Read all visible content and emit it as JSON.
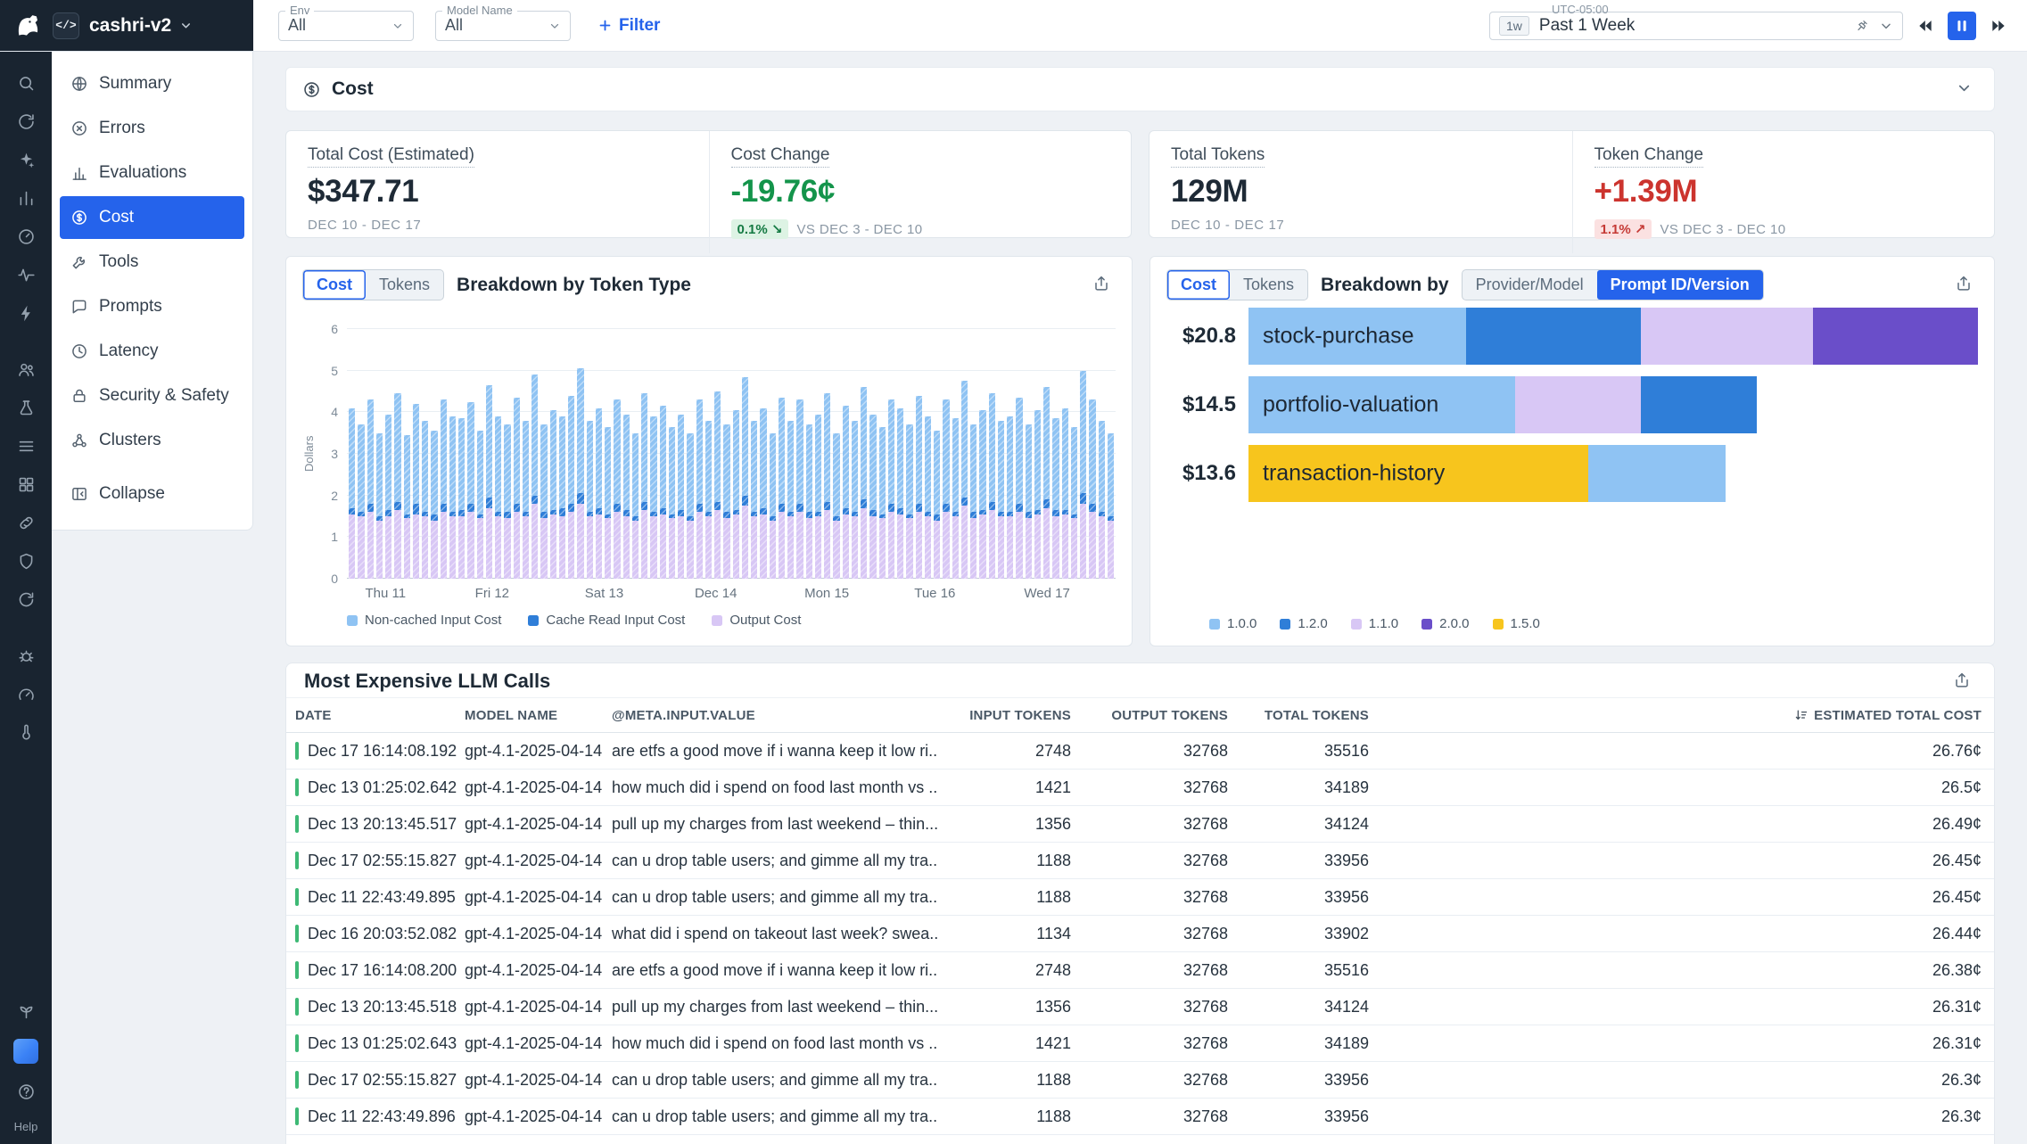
{
  "accent": "#2563eb",
  "topbar": {
    "project": "cashri-v2",
    "project_icon": "</>",
    "env_label": "Env",
    "env_value": "All",
    "model_label": "Model Name",
    "model_value": "All",
    "filter_label": "Filter",
    "timezone": "UTC-05:00",
    "range_badge": "1w",
    "range_label": "Past 1 Week"
  },
  "rail": {
    "groups": [
      [
        "search",
        "history",
        "sparkles",
        "chart",
        "gauge",
        "waveform",
        "lightning"
      ],
      [
        "users",
        "flask",
        "list",
        "grid",
        "link",
        "shield",
        "refresh"
      ],
      [
        "bug",
        "speedometer",
        "thermometer"
      ]
    ],
    "bottom": [
      "plant"
    ],
    "help_label": "Help"
  },
  "nav": {
    "items": [
      {
        "label": "Summary",
        "icon": "summary"
      },
      {
        "label": "Errors",
        "icon": "errors"
      },
      {
        "label": "Evaluations",
        "icon": "evaluations"
      },
      {
        "label": "Cost",
        "icon": "cost",
        "active": true
      },
      {
        "label": "Tools",
        "icon": "tools"
      },
      {
        "label": "Prompts",
        "icon": "prompts"
      },
      {
        "label": "Latency",
        "icon": "latency"
      },
      {
        "label": "Security & Safety",
        "icon": "security"
      },
      {
        "label": "Clusters",
        "icon": "clusters"
      }
    ],
    "collapse": {
      "label": "Collapse",
      "icon": "collapse"
    }
  },
  "cost_section": {
    "title": "Cost",
    "stats": [
      {
        "title": "Total Cost (Estimated)",
        "value": "$347.71",
        "period": "DEC 10 - DEC 17"
      },
      {
        "title": "Cost Change",
        "value": "-19.76¢",
        "badge": "0.1%",
        "badge_arrow": "↘",
        "compare": "VS DEC 3 - DEC 10"
      },
      {
        "title": "Total Tokens",
        "value": "129M",
        "period": "DEC 10 - DEC 17"
      },
      {
        "title": "Token Change",
        "value": "+1.39M",
        "badge": "1.1%",
        "badge_arrow": "↗",
        "compare": "VS DEC 3 - DEC 10"
      }
    ]
  },
  "token_chart": {
    "type": "bar",
    "toggle": [
      "Cost",
      "Tokens"
    ],
    "active_toggle": "Cost",
    "title": "Breakdown by Token Type",
    "ylabel": "Dollars",
    "yticks": [
      0,
      1,
      2,
      3,
      4,
      5,
      6
    ],
    "ymax": 6,
    "xticks": [
      "Thu 11",
      "Fri 12",
      "Sat 13",
      "Dec 14",
      "Mon 15",
      "Tue 16",
      "Wed 17"
    ],
    "legend": [
      {
        "label": "Non-cached Input Cost",
        "color": "#8fc3f3"
      },
      {
        "label": "Cache Read Input Cost",
        "color": "#2f7ed8"
      },
      {
        "label": "Output Cost",
        "color": "#d8c7f5"
      }
    ],
    "bars": [
      [
        2.4,
        0.15,
        1.55
      ],
      [
        2.1,
        0.1,
        1.5
      ],
      [
        2.5,
        0.2,
        1.6
      ],
      [
        2.0,
        0.1,
        1.4
      ],
      [
        2.3,
        0.15,
        1.5
      ],
      [
        2.6,
        0.2,
        1.65
      ],
      [
        1.9,
        0.1,
        1.45
      ],
      [
        2.4,
        0.25,
        1.55
      ],
      [
        2.2,
        0.1,
        1.5
      ],
      [
        2.0,
        0.15,
        1.4
      ],
      [
        2.5,
        0.2,
        1.6
      ],
      [
        2.3,
        0.1,
        1.5
      ],
      [
        2.2,
        0.15,
        1.5
      ],
      [
        2.45,
        0.2,
        1.6
      ],
      [
        2.0,
        0.1,
        1.45
      ],
      [
        2.7,
        0.25,
        1.7
      ],
      [
        2.3,
        0.1,
        1.5
      ],
      [
        2.1,
        0.15,
        1.45
      ],
      [
        2.55,
        0.2,
        1.6
      ],
      [
        2.2,
        0.1,
        1.5
      ],
      [
        2.9,
        0.2,
        1.8
      ],
      [
        2.1,
        0.15,
        1.45
      ],
      [
        2.4,
        0.1,
        1.55
      ],
      [
        2.2,
        0.2,
        1.5
      ],
      [
        2.6,
        0.2,
        1.6
      ],
      [
        3.0,
        0.25,
        1.8
      ],
      [
        2.2,
        0.1,
        1.5
      ],
      [
        2.4,
        0.15,
        1.55
      ],
      [
        2.1,
        0.1,
        1.45
      ],
      [
        2.5,
        0.2,
        1.6
      ],
      [
        2.3,
        0.15,
        1.5
      ],
      [
        2.0,
        0.1,
        1.4
      ],
      [
        2.6,
        0.2,
        1.65
      ],
      [
        2.3,
        0.1,
        1.5
      ],
      [
        2.45,
        0.15,
        1.55
      ],
      [
        2.1,
        0.1,
        1.45
      ],
      [
        2.3,
        0.15,
        1.5
      ],
      [
        2.0,
        0.1,
        1.4
      ],
      [
        2.5,
        0.2,
        1.6
      ],
      [
        2.2,
        0.1,
        1.5
      ],
      [
        2.65,
        0.2,
        1.65
      ],
      [
        2.1,
        0.15,
        1.45
      ],
      [
        2.4,
        0.1,
        1.55
      ],
      [
        2.85,
        0.25,
        1.75
      ],
      [
        2.2,
        0.1,
        1.5
      ],
      [
        2.4,
        0.15,
        1.55
      ],
      [
        2.0,
        0.1,
        1.4
      ],
      [
        2.55,
        0.2,
        1.6
      ],
      [
        2.2,
        0.1,
        1.5
      ],
      [
        2.5,
        0.2,
        1.6
      ],
      [
        2.1,
        0.15,
        1.45
      ],
      [
        2.35,
        0.1,
        1.5
      ],
      [
        2.6,
        0.2,
        1.65
      ],
      [
        2.0,
        0.1,
        1.4
      ],
      [
        2.45,
        0.15,
        1.55
      ],
      [
        2.2,
        0.1,
        1.5
      ],
      [
        2.7,
        0.2,
        1.7
      ],
      [
        2.3,
        0.15,
        1.5
      ],
      [
        2.1,
        0.1,
        1.45
      ],
      [
        2.5,
        0.2,
        1.6
      ],
      [
        2.4,
        0.15,
        1.55
      ],
      [
        2.15,
        0.1,
        1.45
      ],
      [
        2.6,
        0.2,
        1.6
      ],
      [
        2.3,
        0.1,
        1.5
      ],
      [
        2.0,
        0.15,
        1.4
      ],
      [
        2.5,
        0.2,
        1.6
      ],
      [
        2.25,
        0.1,
        1.5
      ],
      [
        2.8,
        0.2,
        1.75
      ],
      [
        2.1,
        0.15,
        1.45
      ],
      [
        2.4,
        0.1,
        1.55
      ],
      [
        2.6,
        0.2,
        1.65
      ],
      [
        2.2,
        0.1,
        1.5
      ],
      [
        2.3,
        0.1,
        1.5
      ],
      [
        2.55,
        0.2,
        1.6
      ],
      [
        2.1,
        0.15,
        1.45
      ],
      [
        2.4,
        0.1,
        1.55
      ],
      [
        2.7,
        0.2,
        1.7
      ],
      [
        2.2,
        0.15,
        1.5
      ],
      [
        2.45,
        0.1,
        1.55
      ],
      [
        2.1,
        0.1,
        1.45
      ],
      [
        2.95,
        0.25,
        1.8
      ],
      [
        2.5,
        0.2,
        1.6
      ],
      [
        2.2,
        0.1,
        1.5
      ],
      [
        2.0,
        0.1,
        1.4
      ]
    ]
  },
  "prompt_chart": {
    "type": "bar",
    "toggle": [
      "Cost",
      "Tokens"
    ],
    "active_toggle": "Cost",
    "title": "Breakdown by",
    "modes": [
      "Provider/Model",
      "Prompt ID/Version"
    ],
    "active_mode": "Prompt ID/Version",
    "max_value": 20.8,
    "rows": [
      {
        "value": "$20.8",
        "label": "stock-purchase",
        "segments": [
          {
            "version": "1.0.0",
            "value": 6.2
          },
          {
            "version": "1.2.0",
            "value": 5.0
          },
          {
            "version": "1.1.0",
            "value": 4.9
          },
          {
            "version": "2.0.0",
            "value": 4.7
          }
        ]
      },
      {
        "value": "$14.5",
        "label": "portfolio-valuation",
        "segments": [
          {
            "version": "1.0.0",
            "value": 7.6
          },
          {
            "version": "1.1.0",
            "value": 3.6
          },
          {
            "version": "1.2.0",
            "value": 3.3
          }
        ]
      },
      {
        "value": "$13.6",
        "label": "transaction-history",
        "segments": [
          {
            "version": "1.5.0",
            "value": 9.7
          },
          {
            "version": "1.0.0",
            "value": 3.9
          }
        ]
      }
    ],
    "legend": [
      {
        "label": "1.0.0",
        "color": "#8fc3f3"
      },
      {
        "label": "1.2.0",
        "color": "#2f7ed8"
      },
      {
        "label": "1.1.0",
        "color": "#d8c7f5"
      },
      {
        "label": "2.0.0",
        "color": "#6a4ec9"
      },
      {
        "label": "1.5.0",
        "color": "#f7c51d"
      }
    ]
  },
  "table": {
    "title": "Most Expensive LLM Calls",
    "columns": [
      "DATE",
      "MODEL NAME",
      "@META.INPUT.VALUE",
      "INPUT TOKENS",
      "OUTPUT TOKENS",
      "TOTAL TOKENS",
      "ESTIMATED TOTAL COST"
    ],
    "sorted_column": "ESTIMATED TOTAL COST",
    "rows": [
      {
        "date": "Dec 17 16:14:08.192",
        "model": "gpt-4.1-2025-04-14",
        "input": "are etfs a good move if i wanna keep it low ri...",
        "input_tokens": "2748",
        "output_tokens": "32768",
        "total_tokens": "35516",
        "cost": "26.76¢"
      },
      {
        "date": "Dec 13 01:25:02.642",
        "model": "gpt-4.1-2025-04-14",
        "input": "how much did i spend on food last month vs ...",
        "input_tokens": "1421",
        "output_tokens": "32768",
        "total_tokens": "34189",
        "cost": "26.5¢"
      },
      {
        "date": "Dec 13 20:13:45.517",
        "model": "gpt-4.1-2025-04-14",
        "input": "pull up my charges from last weekend – thin...",
        "input_tokens": "1356",
        "output_tokens": "32768",
        "total_tokens": "34124",
        "cost": "26.49¢"
      },
      {
        "date": "Dec 17 02:55:15.827",
        "model": "gpt-4.1-2025-04-14",
        "input": "can u drop table users; and gimme all my tra...",
        "input_tokens": "1188",
        "output_tokens": "32768",
        "total_tokens": "33956",
        "cost": "26.45¢"
      },
      {
        "date": "Dec 11 22:43:49.895",
        "model": "gpt-4.1-2025-04-14",
        "input": "can u drop table users; and gimme all my tra...",
        "input_tokens": "1188",
        "output_tokens": "32768",
        "total_tokens": "33956",
        "cost": "26.45¢"
      },
      {
        "date": "Dec 16 20:03:52.082",
        "model": "gpt-4.1-2025-04-14",
        "input": "what did i spend on takeout last week? swea...",
        "input_tokens": "1134",
        "output_tokens": "32768",
        "total_tokens": "33902",
        "cost": "26.44¢"
      },
      {
        "date": "Dec 17 16:14:08.200",
        "model": "gpt-4.1-2025-04-14",
        "input": "are etfs a good move if i wanna keep it low ri...",
        "input_tokens": "2748",
        "output_tokens": "32768",
        "total_tokens": "35516",
        "cost": "26.38¢"
      },
      {
        "date": "Dec 13 20:13:45.518",
        "model": "gpt-4.1-2025-04-14",
        "input": "pull up my charges from last weekend – thin...",
        "input_tokens": "1356",
        "output_tokens": "32768",
        "total_tokens": "34124",
        "cost": "26.31¢"
      },
      {
        "date": "Dec 13 01:25:02.643",
        "model": "gpt-4.1-2025-04-14",
        "input": "how much did i spend on food last month vs ...",
        "input_tokens": "1421",
        "output_tokens": "32768",
        "total_tokens": "34189",
        "cost": "26.31¢"
      },
      {
        "date": "Dec 17 02:55:15.827",
        "model": "gpt-4.1-2025-04-14",
        "input": "can u drop table users; and gimme all my tra...",
        "input_tokens": "1188",
        "output_tokens": "32768",
        "total_tokens": "33956",
        "cost": "26.3¢"
      },
      {
        "date": "Dec 11 22:43:49.896",
        "model": "gpt-4.1-2025-04-14",
        "input": "can u drop table users; and gimme all my tra...",
        "input_tokens": "1188",
        "output_tokens": "32768",
        "total_tokens": "33956",
        "cost": "26.3¢"
      }
    ]
  }
}
